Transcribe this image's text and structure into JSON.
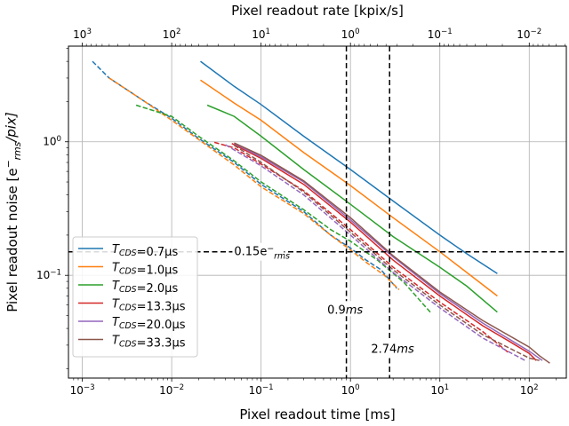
{
  "chart_data": {
    "type": "line",
    "xlabel": "Pixel readout time [ms]",
    "x2label": "Pixel readout rate [kpix/s]",
    "ylabel_main": "Pixel readout noise [e",
    "ylabel_sup": "−",
    "ylabel_sub": "rms",
    "ylabel_tail": "/pix]",
    "xscale": "log",
    "yscale": "log",
    "xlim": [
      0.0007,
      260
    ],
    "ylim": [
      0.017,
      5.2
    ],
    "grid": true,
    "legend_position": "lower-left",
    "x_ticks": [
      {
        "v": 0.001,
        "base": "10",
        "exp": "−3"
      },
      {
        "v": 0.01,
        "base": "10",
        "exp": "−2"
      },
      {
        "v": 0.1,
        "base": "10",
        "exp": "−1"
      },
      {
        "v": 1,
        "base": "10",
        "exp": "0"
      },
      {
        "v": 10,
        "base": "10",
        "exp": "1"
      },
      {
        "v": 100,
        "base": "10",
        "exp": "2"
      }
    ],
    "x2_ticks": [
      {
        "v": 1000,
        "base": "10",
        "exp": "3"
      },
      {
        "v": 100,
        "base": "10",
        "exp": "2"
      },
      {
        "v": 10,
        "base": "10",
        "exp": "1"
      },
      {
        "v": 1,
        "base": "10",
        "exp": "0"
      },
      {
        "v": 0.1,
        "base": "10",
        "exp": "−1"
      },
      {
        "v": 0.01,
        "base": "10",
        "exp": "−2"
      }
    ],
    "y_ticks": [
      {
        "v": 1,
        "base": "10",
        "exp": "0"
      },
      {
        "v": 0.1,
        "base": "10",
        "exp": "−1"
      }
    ],
    "series": [
      {
        "name": "T_CDS=0.7µs",
        "label_main": "T",
        "label_sub": "CDS",
        "label_tail": "=0.7µs",
        "color": "#1f77b4",
        "dashed": [
          [
            0.0013,
            4.0
          ],
          [
            0.002,
            3.0
          ],
          [
            0.005,
            2.0
          ],
          [
            0.01,
            1.5
          ],
          [
            0.02,
            1.06
          ],
          [
            0.05,
            0.7
          ],
          [
            0.1,
            0.48
          ],
          [
            0.3,
            0.3
          ],
          [
            0.6,
            0.2
          ],
          [
            1.0,
            0.16
          ],
          [
            1.5,
            0.13
          ],
          [
            2.2,
            0.11
          ],
          [
            3.3,
            0.08
          ]
        ],
        "solid": [
          [
            0.021,
            4.0
          ],
          [
            0.05,
            2.6
          ],
          [
            0.1,
            1.9
          ],
          [
            0.3,
            1.1
          ],
          [
            1.0,
            0.62
          ],
          [
            3.0,
            0.36
          ],
          [
            10,
            0.2
          ],
          [
            20,
            0.145
          ],
          [
            44,
            0.103
          ]
        ]
      },
      {
        "name": "T_CDS=1.0µs",
        "label_main": "T",
        "label_sub": "CDS",
        "label_tail": "=1.0µs",
        "color": "#ff7f0e",
        "dashed": [
          [
            0.002,
            3.0
          ],
          [
            0.005,
            2.0
          ],
          [
            0.01,
            1.45
          ],
          [
            0.02,
            1.04
          ],
          [
            0.05,
            0.67
          ],
          [
            0.1,
            0.46
          ],
          [
            0.3,
            0.29
          ],
          [
            0.6,
            0.2
          ],
          [
            1.0,
            0.155
          ],
          [
            1.5,
            0.125
          ],
          [
            2.4,
            0.1
          ],
          [
            3.5,
            0.078
          ]
        ],
        "solid": [
          [
            0.021,
            2.9
          ],
          [
            0.05,
            1.95
          ],
          [
            0.1,
            1.45
          ],
          [
            0.3,
            0.83
          ],
          [
            1.0,
            0.47
          ],
          [
            3.0,
            0.27
          ],
          [
            10,
            0.15
          ],
          [
            20,
            0.105
          ],
          [
            44,
            0.07
          ]
        ]
      },
      {
        "name": "T_CDS=2.0µs",
        "label_main": "T",
        "label_sub": "CDS",
        "label_tail": "=2.0µs",
        "color": "#2ca02c",
        "dashed": [
          [
            0.004,
            1.88
          ],
          [
            0.01,
            1.55
          ],
          [
            0.02,
            1.1
          ],
          [
            0.05,
            0.72
          ],
          [
            0.1,
            0.5
          ],
          [
            0.3,
            0.31
          ],
          [
            0.6,
            0.22
          ],
          [
            1.0,
            0.18
          ],
          [
            2.0,
            0.13
          ],
          [
            4.0,
            0.088
          ],
          [
            8.0,
            0.052
          ]
        ],
        "solid": [
          [
            0.025,
            1.88
          ],
          [
            0.05,
            1.55
          ],
          [
            0.1,
            1.1
          ],
          [
            0.3,
            0.62
          ],
          [
            1.0,
            0.34
          ],
          [
            3.0,
            0.195
          ],
          [
            10,
            0.115
          ],
          [
            20,
            0.083
          ],
          [
            44,
            0.053
          ]
        ]
      },
      {
        "name": "T_CDS=13.3µs",
        "label_main": "T",
        "label_sub": "CDS",
        "label_tail": "=13.3µs",
        "color": "#d62728",
        "dashed": [
          [
            0.03,
            0.99
          ],
          [
            0.05,
            0.9
          ],
          [
            0.1,
            0.68
          ],
          [
            0.3,
            0.43
          ],
          [
            1.0,
            0.22
          ],
          [
            3.0,
            0.115
          ],
          [
            10,
            0.063
          ],
          [
            30,
            0.038
          ],
          [
            60,
            0.026
          ]
        ],
        "solid": [
          [
            0.047,
            0.97
          ],
          [
            0.1,
            0.75
          ],
          [
            0.3,
            0.48
          ],
          [
            1.0,
            0.25
          ],
          [
            3.0,
            0.13
          ],
          [
            10,
            0.07
          ],
          [
            30,
            0.042
          ],
          [
            60,
            0.032
          ],
          [
            100,
            0.026
          ],
          [
            120,
            0.023
          ]
        ]
      },
      {
        "name": "T_CDS=20.0µs",
        "label_main": "T",
        "label_sub": "CDS",
        "label_tail": "=20.0µs",
        "color": "#9467bd",
        "dashed": [
          [
            0.04,
            0.95
          ],
          [
            0.1,
            0.66
          ],
          [
            0.3,
            0.4
          ],
          [
            1.0,
            0.2
          ],
          [
            3.0,
            0.105
          ],
          [
            10,
            0.057
          ],
          [
            30,
            0.034
          ],
          [
            90,
            0.023
          ]
        ],
        "solid": [
          [
            0.05,
            0.97
          ],
          [
            0.1,
            0.77
          ],
          [
            0.3,
            0.5
          ],
          [
            1.0,
            0.26
          ],
          [
            3.0,
            0.137
          ],
          [
            10,
            0.073
          ],
          [
            30,
            0.044
          ],
          [
            100,
            0.027
          ],
          [
            140,
            0.023
          ]
        ]
      },
      {
        "name": "T_CDS=33.3µs",
        "label_main": "T",
        "label_sub": "CDS",
        "label_tail": "=33.3µs",
        "color": "#8c564b",
        "dashed": [
          [
            0.05,
            0.94
          ],
          [
            0.1,
            0.7
          ],
          [
            0.3,
            0.42
          ],
          [
            1.0,
            0.21
          ],
          [
            3.0,
            0.11
          ],
          [
            10,
            0.06
          ],
          [
            30,
            0.036
          ],
          [
            100,
            0.024
          ],
          [
            130,
            0.023
          ]
        ],
        "solid": [
          [
            0.05,
            0.98
          ],
          [
            0.1,
            0.79
          ],
          [
            0.3,
            0.51
          ],
          [
            1.0,
            0.27
          ],
          [
            3.0,
            0.14
          ],
          [
            10,
            0.075
          ],
          [
            30,
            0.046
          ],
          [
            100,
            0.029
          ],
          [
            130,
            0.025
          ],
          [
            170,
            0.022
          ]
        ]
      }
    ],
    "reference_lines": [
      {
        "orientation": "horizontal",
        "value": 0.15
      },
      {
        "orientation": "vertical",
        "value": 0.9
      },
      {
        "orientation": "vertical",
        "value": 2.74
      }
    ],
    "annotations": [
      {
        "name": "hline-label",
        "main": "0.15e",
        "sup": "−",
        "sub": "rms",
        "x": 0.05,
        "y": 0.15
      },
      {
        "name": "vline-label-0.9",
        "main": "0.9",
        "italic": "ms",
        "x": 0.55,
        "y": 0.055
      },
      {
        "name": "vline-label-2.74",
        "main": "2.74",
        "italic": "ms",
        "x": 1.7,
        "y": 0.028
      }
    ]
  }
}
